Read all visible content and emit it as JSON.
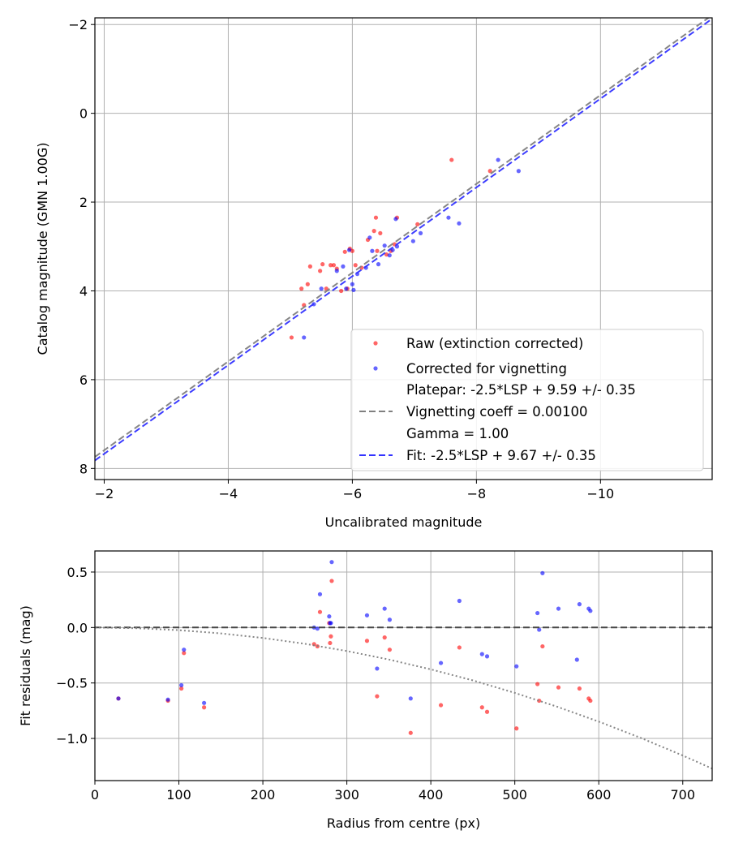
{
  "chart_data": [
    {
      "type": "scatter",
      "xlabel": "Uncalibrated magnitude",
      "ylabel": "Catalog magnitude (GMN 1.00G)",
      "xlim": [
        -1.85,
        -11.8
      ],
      "ylim": [
        8.25,
        -2.15
      ],
      "xticks": [
        -2,
        -4,
        -6,
        -8,
        -10
      ],
      "yticks": [
        -2,
        0,
        2,
        4,
        6,
        8
      ],
      "xtick_labels": [
        "−2",
        "−4",
        "−6",
        "−8",
        "−10"
      ],
      "ytick_labels": [
        "−2",
        "0",
        "2",
        "4",
        "6",
        "8"
      ],
      "grid": true,
      "legend_position": "lower-right",
      "series": [
        {
          "name": "Raw (extinction corrected)",
          "kind": "scatter",
          "color": "#ff0000",
          "x": [
            -5.02,
            -5.18,
            -5.22,
            -5.28,
            -5.32,
            -5.48,
            -5.52,
            -5.58,
            -5.65,
            -5.7,
            -5.75,
            -5.82,
            -5.88,
            -5.92,
            -5.96,
            -6.0,
            -6.05,
            -6.15,
            -6.25,
            -6.35,
            -6.38,
            -6.4,
            -6.45,
            -6.55,
            -6.62,
            -6.68,
            -6.72,
            -7.05,
            -7.6,
            -8.22
          ],
          "y": [
            5.05,
            3.95,
            4.32,
            3.85,
            3.45,
            3.55,
            3.4,
            3.95,
            3.42,
            3.42,
            3.5,
            4.0,
            3.12,
            3.95,
            3.05,
            3.1,
            3.42,
            3.48,
            2.85,
            2.65,
            2.35,
            3.1,
            2.7,
            3.18,
            3.1,
            2.95,
            2.35,
            2.5,
            1.05,
            1.3
          ]
        },
        {
          "name": "Corrected for vignetting",
          "kind": "scatter",
          "color": "#0000ff",
          "x": [
            -5.22,
            -5.38,
            -5.5,
            -5.75,
            -5.85,
            -5.9,
            -5.95,
            -6.0,
            -6.02,
            -6.08,
            -6.22,
            -6.28,
            -6.32,
            -6.42,
            -6.52,
            -6.6,
            -6.65,
            -6.7,
            -6.72,
            -6.98,
            -7.1,
            -7.55,
            -7.72,
            -8.35,
            -8.68
          ],
          "y": [
            5.05,
            4.3,
            3.95,
            3.55,
            3.45,
            3.95,
            3.08,
            3.85,
            3.98,
            3.62,
            3.48,
            2.8,
            3.1,
            3.4,
            2.98,
            3.2,
            3.08,
            2.38,
            3.0,
            2.88,
            2.7,
            2.35,
            2.48,
            1.05,
            1.3
          ]
        },
        {
          "name": "Platepar: -2.5*LSP + 9.59 +/- 0.35\nVignetting coeff = 0.00100\nGamma = 1.00",
          "kind": "line",
          "color": "#808080",
          "dash": "dashed",
          "x": [
            -1.85,
            -11.8
          ],
          "y": [
            7.74,
            -2.21
          ]
        },
        {
          "name": "Fit: -2.5*LSP + 9.67 +/- 0.35",
          "kind": "line",
          "color": "#3333ff",
          "dash": "dashed",
          "x": [
            -1.85,
            -11.8
          ],
          "y": [
            7.82,
            -2.13
          ]
        }
      ]
    },
    {
      "type": "scatter",
      "xlabel": "Radius from centre (px)",
      "ylabel": "Fit residuals (mag)",
      "xlim": [
        0,
        735
      ],
      "ylim": [
        -1.38,
        0.69
      ],
      "xticks": [
        0,
        100,
        200,
        300,
        400,
        500,
        600,
        700
      ],
      "yticks": [
        0.5,
        0.0,
        -0.5,
        -1.0
      ],
      "xtick_labels": [
        "0",
        "100",
        "200",
        "300",
        "400",
        "500",
        "600",
        "700"
      ],
      "ytick_labels": [
        "0.5",
        "0.0",
        "−0.5",
        "−1.0"
      ],
      "grid": true,
      "series": [
        {
          "name": "Raw (extinction corrected)",
          "kind": "scatter",
          "color": "#ff0000",
          "x": [
            28,
            87,
            103,
            106,
            130,
            261,
            265,
            268,
            279,
            280,
            281,
            282,
            324,
            336,
            345,
            351,
            376,
            412,
            434,
            461,
            467,
            502,
            527,
            529,
            533,
            552,
            577,
            588,
            590
          ],
          "y": [
            -0.64,
            -0.66,
            -0.55,
            -0.23,
            -0.72,
            -0.15,
            -0.17,
            0.14,
            0.04,
            -0.14,
            -0.08,
            0.42,
            -0.12,
            -0.62,
            -0.09,
            -0.2,
            -0.95,
            -0.7,
            -0.18,
            -0.72,
            -0.76,
            -0.91,
            -0.51,
            -0.66,
            -0.17,
            -0.54,
            -0.55,
            -0.64,
            -0.66
          ]
        },
        {
          "name": "Corrected for vignetting",
          "kind": "scatter",
          "color": "#0000ff",
          "x": [
            28,
            87,
            103,
            106,
            130,
            261,
            265,
            268,
            279,
            280,
            281,
            282,
            324,
            336,
            345,
            351,
            376,
            412,
            434,
            461,
            467,
            502,
            527,
            529,
            533,
            552,
            574,
            577,
            588,
            590
          ],
          "y": [
            -0.64,
            -0.65,
            -0.52,
            -0.2,
            -0.68,
            0.0,
            -0.01,
            0.3,
            0.1,
            0.04,
            0.04,
            0.59,
            0.11,
            -0.37,
            0.17,
            0.07,
            -0.64,
            -0.32,
            0.24,
            -0.24,
            -0.26,
            -0.35,
            0.13,
            -0.02,
            0.49,
            0.17,
            -0.29,
            0.21,
            0.17,
            0.15
          ]
        },
        {
          "name": "",
          "kind": "line",
          "color": "#404040",
          "dash": "dashed",
          "x": [
            0,
            735
          ],
          "y": [
            0.0,
            0.0
          ]
        },
        {
          "name": "",
          "kind": "line",
          "color": "#808080",
          "dash": "dotted",
          "x": [
            0,
            50,
            100,
            150,
            200,
            250,
            300,
            350,
            400,
            450,
            500,
            550,
            600,
            650,
            700,
            735
          ],
          "y": [
            0.0,
            -0.006,
            -0.024,
            -0.053,
            -0.094,
            -0.147,
            -0.212,
            -0.289,
            -0.377,
            -0.477,
            -0.589,
            -0.713,
            -0.848,
            -0.995,
            -1.154,
            -1.272
          ]
        }
      ]
    }
  ]
}
